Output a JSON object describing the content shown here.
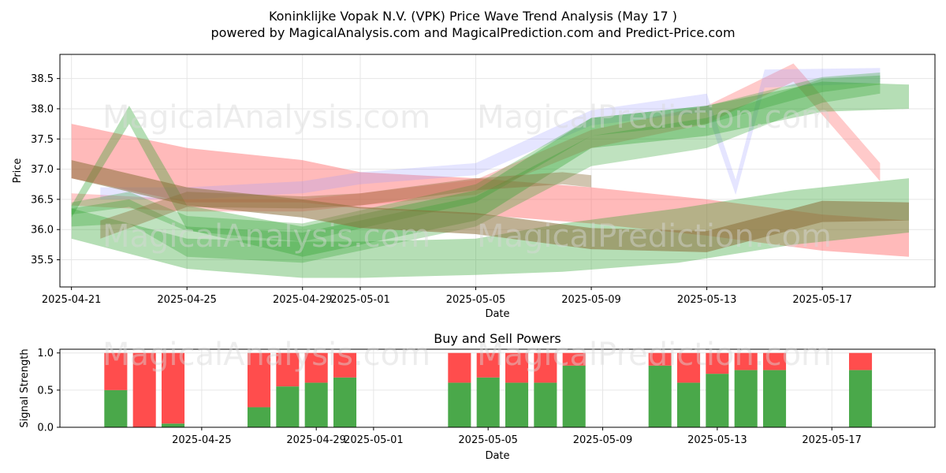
{
  "title_line1": "Koninklijke Vopak N.V. (VPK) Price Wave Trend Analysis (May 17 )",
  "title_line2": "powered by MagicalAnalysis.com and MagicalPrediction.com and Predict-Price.com",
  "watermarks": [
    "MagicalAnalysis.com",
    "MagicalPrediction.com"
  ],
  "colors": {
    "buy": "#4aa84a",
    "sell": "#ff4d4d",
    "green_band": "#2ca02c",
    "red_band": "#ff6666",
    "blue_band": "#9999ff",
    "brown_band": "#8b6f3a"
  },
  "chart_data": [
    {
      "type": "area",
      "title": "",
      "xlabel": "Date",
      "ylabel": "Price",
      "xlim": [
        "2025-04-21",
        "2025-05-20"
      ],
      "ylim": [
        35.05,
        38.9
      ],
      "yticks": [
        35.5,
        36.0,
        36.5,
        37.0,
        37.5,
        38.0,
        38.5
      ],
      "xticks": [
        "2025-04-21",
        "2025-04-25",
        "2025-04-29",
        "2025-05-01",
        "2025-05-05",
        "2025-05-09",
        "2025-05-13",
        "2025-05-17"
      ],
      "grid": true,
      "series": [
        {
          "color": "red",
          "opacity": 0.45,
          "points": [
            [
              "2025-04-21",
              37.3
            ],
            [
              "2025-04-25",
              36.9
            ],
            [
              "2025-04-29",
              36.8
            ],
            [
              "2025-05-01",
              36.65
            ],
            [
              "2025-05-05",
              36.55
            ],
            [
              "2025-05-09",
              36.4
            ],
            [
              "2025-05-13",
              36.2
            ],
            [
              "2025-05-17",
              35.95
            ],
            [
              "2025-05-20",
              35.85
            ]
          ],
          "width": [
            0.9,
            0.9,
            0.7,
            0.6,
            0.6,
            0.6,
            0.6,
            0.6,
            0.6
          ]
        },
        {
          "color": "red",
          "opacity": 0.35,
          "points": [
            [
              "2025-04-21",
              36.5
            ],
            [
              "2025-04-25",
              36.4
            ],
            [
              "2025-04-29",
              36.4
            ],
            [
              "2025-05-01",
              36.5
            ],
            [
              "2025-05-05",
              36.7
            ],
            [
              "2025-05-09",
              37.5
            ],
            [
              "2025-05-13",
              37.9
            ],
            [
              "2025-05-16",
              38.6
            ],
            [
              "2025-05-19",
              36.95
            ]
          ],
          "width": [
            0.2,
            0.2,
            0.2,
            0.2,
            0.25,
            0.3,
            0.3,
            0.3,
            0.3
          ]
        },
        {
          "color": "blue",
          "opacity": 0.25,
          "points": [
            [
              "2025-04-22",
              36.6
            ],
            [
              "2025-04-25",
              36.6
            ],
            [
              "2025-04-29",
              36.7
            ],
            [
              "2025-05-01",
              36.85
            ],
            [
              "2025-05-05",
              37.0
            ],
            [
              "2025-05-09",
              37.85
            ],
            [
              "2025-05-13",
              38.1
            ],
            [
              "2025-05-14",
              36.7
            ],
            [
              "2025-05-15",
              38.5
            ],
            [
              "2025-05-19",
              38.55
            ]
          ],
          "width": [
            0.2,
            0.2,
            0.2,
            0.2,
            0.2,
            0.25,
            0.3,
            0.25,
            0.3,
            0.25
          ]
        },
        {
          "color": "green",
          "opacity": 0.35,
          "points": [
            [
              "2025-04-21",
              36.3
            ],
            [
              "2025-04-23",
              37.9
            ],
            [
              "2025-04-25",
              36.2
            ],
            [
              "2025-04-29",
              35.8
            ],
            [
              "2025-05-05",
              36.4
            ],
            [
              "2025-05-09",
              37.6
            ],
            [
              "2025-05-13",
              37.8
            ],
            [
              "2025-05-17",
              38.2
            ],
            [
              "2025-05-20",
              38.2
            ]
          ],
          "width": [
            0.2,
            0.3,
            0.4,
            0.5,
            0.5,
            0.5,
            0.5,
            0.5,
            0.4
          ]
        },
        {
          "color": "green",
          "opacity": 0.3,
          "points": [
            [
              "2025-04-21",
              36.2
            ],
            [
              "2025-04-23",
              36.3
            ],
            [
              "2025-04-25",
              35.8
            ],
            [
              "2025-04-29",
              35.7
            ],
            [
              "2025-05-05",
              36.3
            ],
            [
              "2025-05-09",
              37.3
            ],
            [
              "2025-05-13",
              37.6
            ],
            [
              "2025-05-17",
              38.3
            ],
            [
              "2025-05-19",
              38.4
            ]
          ],
          "width": [
            0.3,
            0.4,
            0.5,
            0.5,
            0.5,
            0.5,
            0.5,
            0.4,
            0.3
          ]
        },
        {
          "color": "green",
          "opacity": 0.3,
          "points": [
            [
              "2025-04-21",
              36.35
            ],
            [
              "2025-04-23",
              36.5
            ],
            [
              "2025-04-25",
              36.1
            ],
            [
              "2025-04-29",
              35.95
            ],
            [
              "2025-05-05",
              36.6
            ],
            [
              "2025-05-09",
              37.7
            ],
            [
              "2025-05-13",
              37.9
            ],
            [
              "2025-05-17",
              38.4
            ],
            [
              "2025-05-19",
              38.5
            ]
          ],
          "width": [
            0.2,
            0.25,
            0.25,
            0.3,
            0.3,
            0.3,
            0.3,
            0.25,
            0.2
          ]
        },
        {
          "color": "green",
          "opacity": 0.35,
          "points": [
            [
              "2025-04-21",
              36.1
            ],
            [
              "2025-04-25",
              35.6
            ],
            [
              "2025-04-29",
              35.5
            ],
            [
              "2025-05-01",
              35.5
            ],
            [
              "2025-05-05",
              35.55
            ],
            [
              "2025-05-08",
              35.7
            ],
            [
              "2025-05-12",
              35.9
            ],
            [
              "2025-05-16",
              36.2
            ],
            [
              "2025-05-20",
              36.4
            ]
          ],
          "width": [
            0.5,
            0.5,
            0.6,
            0.6,
            0.6,
            0.8,
            0.9,
            0.9,
            0.9
          ]
        },
        {
          "color": "brown",
          "opacity": 0.55,
          "points": [
            [
              "2025-04-21",
              37.0
            ],
            [
              "2025-04-25",
              36.55
            ],
            [
              "2025-04-29",
              36.35
            ],
            [
              "2025-05-01",
              36.2
            ],
            [
              "2025-05-05",
              36.1
            ],
            [
              "2025-05-09",
              35.85
            ],
            [
              "2025-05-13",
              35.8
            ],
            [
              "2025-05-17",
              36.3
            ],
            [
              "2025-05-20",
              36.3
            ]
          ],
          "width": [
            0.3,
            0.3,
            0.3,
            0.35,
            0.35,
            0.35,
            0.35,
            0.35,
            0.3
          ]
        },
        {
          "color": "brown",
          "opacity": 0.4,
          "points": [
            [
              "2025-04-22",
              36.0
            ],
            [
              "2025-04-25",
              36.5
            ],
            [
              "2025-04-29",
              36.45
            ],
            [
              "2025-05-01",
              36.5
            ],
            [
              "2025-05-05",
              36.75
            ],
            [
              "2025-05-08",
              36.85
            ],
            [
              "2025-05-09",
              36.8
            ]
          ],
          "width": [
            0.3,
            0.25,
            0.2,
            0.2,
            0.2,
            0.2,
            0.2
          ]
        }
      ]
    },
    {
      "type": "bar",
      "title": "Buy and Sell Powers",
      "xlabel": "Date",
      "ylabel": "Signal Strength",
      "ylim": [
        0,
        1.05
      ],
      "yticks": [
        0.0,
        0.5,
        1.0
      ],
      "xticks": [
        "2025-04-25",
        "2025-04-29",
        "2025-05-01",
        "2025-05-05",
        "2025-05-09",
        "2025-05-13",
        "2025-05-17"
      ],
      "grid": true,
      "categories": [
        "2025-04-22",
        "2025-04-23",
        "2025-04-24",
        "2025-04-27",
        "2025-04-28",
        "2025-04-29",
        "2025-04-30",
        "2025-05-04",
        "2025-05-05",
        "2025-05-06",
        "2025-05-07",
        "2025-05-08",
        "2025-05-11",
        "2025-05-12",
        "2025-05-13",
        "2025-05-14",
        "2025-05-15",
        "2025-05-18"
      ],
      "series": [
        {
          "name": "buy",
          "values": [
            0.5,
            0.0,
            0.05,
            0.27,
            0.55,
            0.6,
            0.67,
            0.6,
            0.67,
            0.6,
            0.6,
            0.83,
            0.83,
            0.6,
            0.72,
            0.77,
            0.77,
            0.77
          ]
        },
        {
          "name": "sell",
          "values": [
            0.5,
            1.0,
            0.95,
            0.73,
            0.45,
            0.4,
            0.33,
            0.4,
            0.33,
            0.4,
            0.4,
            0.17,
            0.17,
            0.4,
            0.28,
            0.23,
            0.23,
            0.23
          ]
        }
      ]
    }
  ]
}
